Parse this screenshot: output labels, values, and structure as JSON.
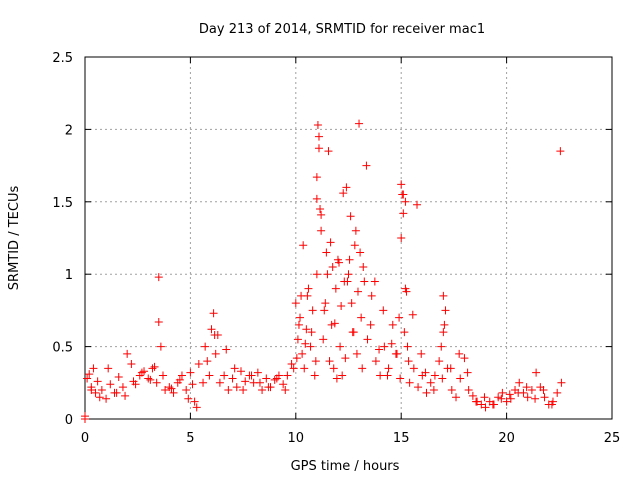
{
  "chart_data": {
    "type": "scatter",
    "title": "Day 213 of 2014, SRMTID for receiver mac1",
    "xlabel": "GPS time / hours",
    "ylabel": "SRMTID / TECUs",
    "xlim": [
      0,
      25
    ],
    "ylim": [
      0,
      2.5
    ],
    "grid": true,
    "marker": "+",
    "series": [
      {
        "name": "SRMTID",
        "color": "#ff0000",
        "x": [
          0.0,
          0.1,
          0.2,
          0.3,
          0.4,
          0.5,
          0.6,
          0.8,
          1.0,
          1.2,
          1.4,
          1.6,
          1.8,
          2.0,
          2.2,
          2.4,
          2.6,
          2.8,
          3.0,
          3.2,
          3.4,
          3.5,
          3.6,
          3.8,
          4.0,
          4.2,
          4.4,
          4.6,
          4.8,
          5.0,
          5.2,
          5.4,
          5.6,
          5.8,
          6.0,
          6.1,
          6.2,
          6.4,
          6.6,
          6.8,
          7.0,
          7.2,
          7.4,
          7.6,
          7.8,
          8.0,
          8.2,
          8.4,
          8.6,
          8.8,
          9.0,
          9.2,
          9.4,
          9.6,
          9.8,
          10.0,
          10.1,
          10.2,
          10.3,
          10.4,
          10.5,
          10.6,
          10.7,
          10.8,
          10.9,
          11.0,
          11.05,
          11.1,
          11.2,
          11.3,
          11.4,
          11.5,
          11.6,
          11.7,
          11.8,
          11.9,
          12.0,
          12.1,
          12.2,
          12.3,
          12.4,
          12.5,
          12.6,
          12.7,
          12.8,
          12.9,
          13.0,
          13.1,
          13.2,
          13.4,
          13.6,
          13.8,
          14.0,
          14.2,
          14.4,
          14.6,
          14.8,
          15.0,
          15.1,
          15.2,
          15.3,
          15.4,
          15.6,
          15.8,
          16.0,
          16.2,
          16.4,
          16.6,
          16.8,
          17.0,
          17.1,
          17.2,
          17.4,
          17.6,
          17.8,
          18.0,
          18.2,
          18.4,
          18.6,
          18.8,
          19.0,
          19.2,
          19.4,
          19.6,
          19.8,
          20.0,
          20.2,
          20.4,
          20.6,
          20.8,
          21.0,
          21.2,
          21.4,
          21.6,
          21.8,
          22.0,
          22.2,
          22.4,
          22.6,
          0.3,
          0.7,
          1.1,
          1.5,
          1.9,
          2.3,
          2.7,
          3.1,
          3.3,
          3.7,
          4.1,
          4.5,
          4.9,
          5.1,
          5.3,
          5.7,
          5.9,
          6.3,
          6.7,
          7.1,
          7.5,
          7.9,
          8.3,
          8.7,
          9.1,
          9.5,
          9.9,
          10.15,
          10.35,
          10.55,
          10.75,
          10.95,
          11.15,
          11.35,
          11.55,
          11.75,
          11.95,
          12.15,
          12.35,
          12.55,
          12.75,
          12.95,
          13.15,
          13.35,
          13.55,
          13.75,
          13.95,
          14.15,
          14.35,
          14.55,
          14.75,
          14.95,
          15.15,
          15.35,
          15.55,
          15.75,
          15.95,
          16.15,
          16.55,
          16.95,
          17.35,
          17.75,
          18.15,
          18.55,
          18.95,
          19.35,
          19.75,
          20.15,
          20.55,
          20.95,
          21.35,
          21.75,
          22.15,
          22.55,
          11.0,
          11.0,
          11.1,
          11.2,
          11.45,
          12.25,
          12.85,
          15.05,
          15.1,
          15.2,
          15.25,
          17.0,
          17.05,
          6.15,
          3.5,
          10.05,
          10.25,
          10.45,
          11.65,
          11.85,
          12.05,
          12.45,
          12.65,
          13.05,
          13.25,
          15.0,
          14.9,
          16.9,
          0.0
        ],
        "y": [
          0.02,
          0.28,
          0.31,
          0.22,
          0.35,
          0.18,
          0.26,
          0.2,
          0.14,
          0.24,
          0.18,
          0.29,
          0.22,
          0.45,
          0.38,
          0.24,
          0.3,
          0.33,
          0.28,
          0.35,
          0.25,
          0.67,
          0.5,
          0.2,
          0.22,
          0.18,
          0.25,
          0.3,
          0.2,
          0.32,
          0.12,
          0.38,
          0.25,
          0.4,
          0.62,
          0.73,
          0.45,
          0.25,
          0.3,
          0.2,
          0.28,
          0.22,
          0.33,
          0.26,
          0.3,
          0.25,
          0.32,
          0.2,
          0.28,
          0.22,
          0.27,
          0.3,
          0.24,
          0.3,
          0.38,
          0.8,
          0.55,
          0.7,
          0.45,
          0.35,
          0.62,
          0.9,
          0.5,
          0.75,
          0.3,
          1.0,
          2.03,
          1.95,
          1.3,
          0.55,
          0.8,
          1.0,
          0.4,
          0.65,
          0.35,
          0.9,
          1.1,
          0.5,
          0.3,
          0.95,
          1.6,
          1.0,
          1.4,
          0.6,
          1.2,
          0.45,
          2.04,
          0.7,
          1.05,
          0.55,
          0.85,
          0.4,
          0.3,
          0.5,
          0.35,
          0.65,
          0.45,
          1.62,
          1.55,
          1.5,
          0.5,
          0.25,
          0.35,
          0.22,
          0.3,
          0.18,
          0.25,
          0.3,
          0.4,
          0.85,
          0.75,
          0.35,
          0.2,
          0.15,
          0.28,
          0.42,
          0.2,
          0.16,
          0.12,
          0.1,
          0.08,
          0.12,
          0.1,
          0.15,
          0.18,
          0.12,
          0.14,
          0.2,
          0.25,
          0.18,
          0.15,
          0.2,
          0.32,
          0.22,
          0.15,
          0.1,
          0.12,
          0.18,
          0.25,
          0.2,
          0.15,
          0.35,
          0.18,
          0.16,
          0.26,
          0.32,
          0.27,
          0.36,
          0.3,
          0.21,
          0.27,
          0.14,
          0.24,
          0.08,
          0.5,
          0.3,
          0.58,
          0.48,
          0.35,
          0.2,
          0.3,
          0.25,
          0.22,
          0.28,
          0.2,
          0.35,
          0.65,
          1.2,
          0.85,
          0.6,
          0.4,
          1.45,
          0.75,
          1.85,
          1.05,
          0.28,
          0.78,
          0.42,
          1.1,
          0.6,
          0.88,
          0.35,
          1.75,
          0.65,
          0.95,
          0.48,
          0.75,
          0.3,
          0.52,
          0.45,
          0.28,
          0.6,
          0.4,
          0.72,
          1.48,
          0.45,
          0.32,
          0.2,
          0.28,
          0.35,
          0.45,
          0.32,
          0.12,
          0.15,
          0.1,
          0.14,
          0.17,
          0.18,
          0.22,
          0.14,
          0.2,
          0.1,
          1.85,
          1.67,
          1.52,
          1.87,
          1.41,
          1.15,
          1.56,
          1.3,
          1.55,
          1.42,
          0.9,
          0.88,
          0.6,
          0.65,
          0.58,
          0.98,
          0.42,
          0.85,
          0.52,
          1.22,
          0.66,
          1.08,
          0.95,
          0.8,
          1.15,
          0.95,
          1.25,
          0.7,
          0.5,
          0.0
        ]
      }
    ]
  }
}
